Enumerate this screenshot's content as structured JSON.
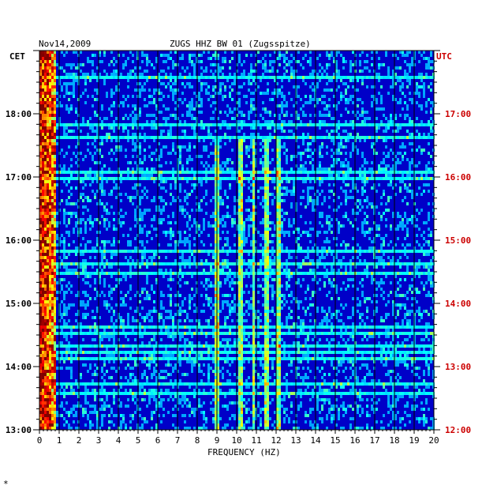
{
  "chart_data": {
    "type": "heatmap",
    "subtype": "spectrogram",
    "date": "Nov14,2009",
    "title": "ZUGS HHZ BW 01 (Zugsspitze)",
    "xlabel": "FREQUENCY (HZ)",
    "xlim": [
      0,
      20
    ],
    "x_ticks": [
      "0",
      "1",
      "2",
      "3",
      "4",
      "5",
      "6",
      "7",
      "8",
      "9",
      "10",
      "11",
      "12",
      "13",
      "14",
      "15",
      "16",
      "17",
      "18",
      "19",
      "20"
    ],
    "left_axis": {
      "label": "CET",
      "ticks": [
        "18:00",
        "17:00",
        "16:00",
        "15:00",
        "14:00",
        "13:00"
      ]
    },
    "right_axis": {
      "label": "UTC",
      "ticks": [
        "17:00",
        "16:00",
        "15:00",
        "14:00",
        "13:00",
        "12:00"
      ],
      "color": "#cc0000"
    },
    "colormap": "jet",
    "background_color": "#0000c8",
    "energy_bands_hz": [
      0.2,
      9.0,
      10.2,
      10.8,
      11.4,
      12.0
    ],
    "footnote_mark": "*"
  }
}
